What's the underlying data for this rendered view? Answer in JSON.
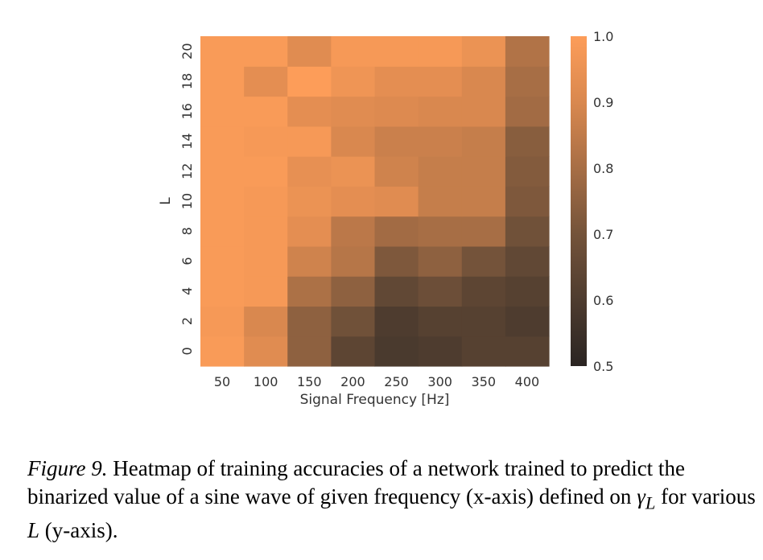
{
  "chart_data": {
    "type": "heatmap",
    "xlabel": "Signal Frequency [Hz]",
    "ylabel": "L",
    "x_ticks": [
      "50",
      "100",
      "150",
      "200",
      "250",
      "300",
      "350",
      "400"
    ],
    "y_ticks": [
      "0",
      "2",
      "4",
      "6",
      "8",
      "10",
      "12",
      "14",
      "16",
      "18",
      "20"
    ],
    "colorbar": {
      "min": 0.5,
      "max": 1.0,
      "ticks": [
        "0.5",
        "0.6",
        "0.7",
        "0.8",
        "0.9",
        "1.0"
      ]
    },
    "values": [
      [
        0.99,
        0.92,
        0.75,
        0.64,
        0.59,
        0.6,
        0.62,
        0.62
      ],
      [
        0.98,
        0.9,
        0.75,
        0.69,
        0.6,
        0.62,
        0.62,
        0.6
      ],
      [
        0.99,
        0.98,
        0.81,
        0.75,
        0.65,
        0.68,
        0.64,
        0.62
      ],
      [
        0.99,
        0.98,
        0.88,
        0.83,
        0.72,
        0.75,
        0.7,
        0.65
      ],
      [
        0.99,
        0.98,
        0.93,
        0.84,
        0.79,
        0.8,
        0.8,
        0.69
      ],
      [
        0.99,
        0.98,
        0.95,
        0.93,
        0.92,
        0.86,
        0.86,
        0.72
      ],
      [
        0.99,
        0.99,
        0.94,
        0.95,
        0.88,
        0.86,
        0.86,
        0.73
      ],
      [
        0.99,
        0.98,
        0.98,
        0.9,
        0.87,
        0.87,
        0.86,
        0.74
      ],
      [
        0.99,
        0.99,
        0.93,
        0.92,
        0.91,
        0.9,
        0.9,
        0.79
      ],
      [
        0.99,
        0.93,
        1.0,
        0.96,
        0.93,
        0.93,
        0.9,
        0.8
      ],
      [
        0.99,
        0.99,
        0.92,
        0.98,
        0.98,
        0.98,
        0.95,
        0.82
      ]
    ]
  },
  "caption": {
    "figure_label": "Figure 9.",
    "text_pre": " Heatmap of training accuracies of a network trained to predict the binarized value of a sine wave of given frequency (x-axis) defined on ",
    "gamma_symbol": "γ",
    "gamma_subscript": "L",
    "text_mid": " for various ",
    "var_L": "L",
    "text_post": " (y-axis)."
  }
}
